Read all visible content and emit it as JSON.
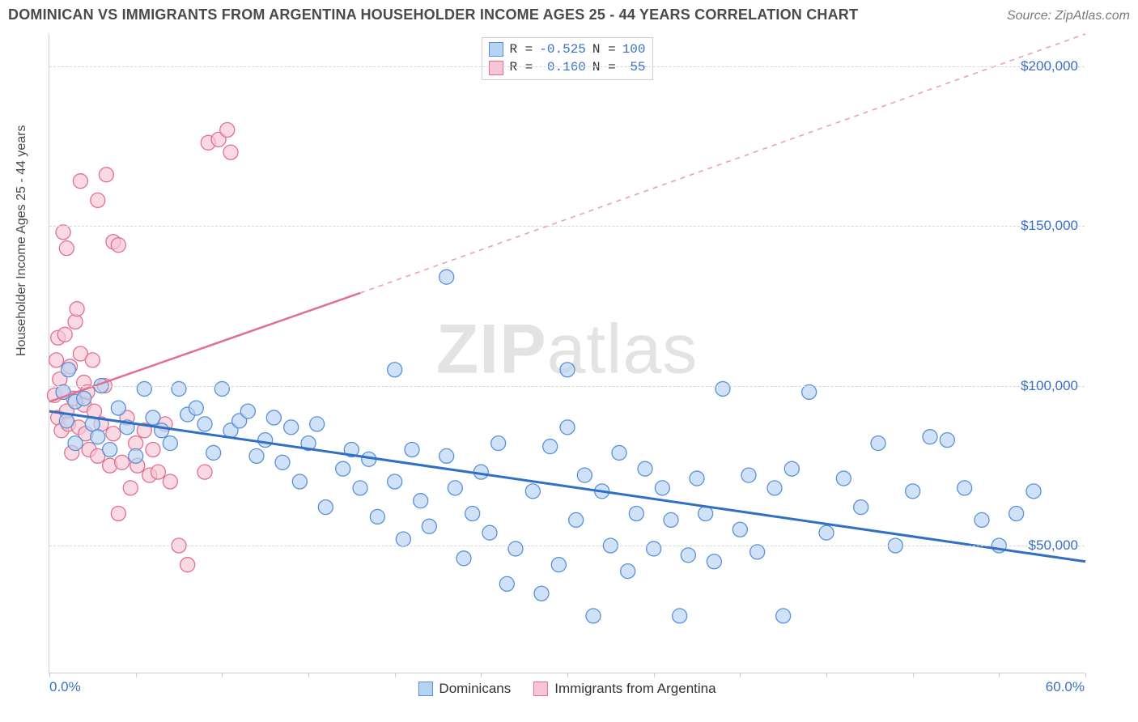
{
  "title": "DOMINICAN VS IMMIGRANTS FROM ARGENTINA HOUSEHOLDER INCOME AGES 25 - 44 YEARS CORRELATION CHART",
  "source_label": "Source: ZipAtlas.com",
  "watermark": {
    "bold": "ZIP",
    "rest": "atlas"
  },
  "ylabel": "Householder Income Ages 25 - 44 years",
  "chart": {
    "type": "scatter",
    "xlim": [
      0.0,
      60.0
    ],
    "ylim": [
      10000,
      210000
    ],
    "x_unit": "%",
    "yticks": [
      50000,
      100000,
      150000,
      200000
    ],
    "ytick_labels": [
      "$50,000",
      "$100,000",
      "$150,000",
      "$200,000"
    ],
    "x_axis_min_label": "0.0%",
    "x_axis_max_label": "60.0%",
    "xtick_positions": [
      0,
      5,
      10,
      15,
      20,
      25,
      30,
      35,
      40,
      45,
      50,
      55,
      60
    ],
    "grid_color": "#d8d8d8",
    "background_color": "#ffffff",
    "axis_color": "#cfcfcf",
    "label_color_primary": "#3970c6",
    "series": [
      {
        "name": "Dominicans",
        "fill": "#b7d3f2",
        "stroke": "#5a91d6",
        "marker_radius": 9,
        "marker_opacity": 0.65,
        "r_value": "-0.525",
        "n_value": "100",
        "trend": {
          "x1": 0.0,
          "y1": 92000,
          "x2": 60.0,
          "y2": 45000,
          "dash": "none"
        },
        "points": [
          [
            0.8,
            98000
          ],
          [
            1.0,
            89000
          ],
          [
            1.1,
            105000
          ],
          [
            1.5,
            95000
          ],
          [
            1.5,
            82000
          ],
          [
            2.0,
            96000
          ],
          [
            2.5,
            88000
          ],
          [
            2.8,
            84000
          ],
          [
            3.0,
            100000
          ],
          [
            3.5,
            80000
          ],
          [
            4.0,
            93000
          ],
          [
            4.5,
            87000
          ],
          [
            5.0,
            78000
          ],
          [
            5.5,
            99000
          ],
          [
            6.0,
            90000
          ],
          [
            6.5,
            86000
          ],
          [
            7.0,
            82000
          ],
          [
            7.5,
            99000
          ],
          [
            8.0,
            91000
          ],
          [
            8.5,
            93000
          ],
          [
            9.0,
            88000
          ],
          [
            9.5,
            79000
          ],
          [
            10.0,
            99000
          ],
          [
            10.5,
            86000
          ],
          [
            11.0,
            89000
          ],
          [
            11.5,
            92000
          ],
          [
            12.0,
            78000
          ],
          [
            12.5,
            83000
          ],
          [
            13.0,
            90000
          ],
          [
            13.5,
            76000
          ],
          [
            14.0,
            87000
          ],
          [
            14.5,
            70000
          ],
          [
            15.0,
            82000
          ],
          [
            15.5,
            88000
          ],
          [
            16.0,
            62000
          ],
          [
            17.0,
            74000
          ],
          [
            17.5,
            80000
          ],
          [
            18.0,
            68000
          ],
          [
            18.5,
            77000
          ],
          [
            19.0,
            59000
          ],
          [
            20.0,
            105000
          ],
          [
            20.0,
            70000
          ],
          [
            20.5,
            52000
          ],
          [
            21.0,
            80000
          ],
          [
            21.5,
            64000
          ],
          [
            22.0,
            56000
          ],
          [
            23.0,
            134000
          ],
          [
            23.0,
            78000
          ],
          [
            23.5,
            68000
          ],
          [
            24.0,
            46000
          ],
          [
            24.5,
            60000
          ],
          [
            25.0,
            73000
          ],
          [
            25.5,
            54000
          ],
          [
            26.0,
            82000
          ],
          [
            26.5,
            38000
          ],
          [
            27.0,
            49000
          ],
          [
            28.0,
            67000
          ],
          [
            28.5,
            35000
          ],
          [
            29.0,
            81000
          ],
          [
            29.5,
            44000
          ],
          [
            30.0,
            87000
          ],
          [
            30.0,
            105000
          ],
          [
            30.5,
            58000
          ],
          [
            31.0,
            72000
          ],
          [
            31.5,
            28000
          ],
          [
            32.0,
            67000
          ],
          [
            32.5,
            50000
          ],
          [
            33.0,
            79000
          ],
          [
            33.5,
            42000
          ],
          [
            34.0,
            60000
          ],
          [
            34.5,
            74000
          ],
          [
            35.0,
            49000
          ],
          [
            35.5,
            68000
          ],
          [
            36.0,
            58000
          ],
          [
            36.5,
            28000
          ],
          [
            37.0,
            47000
          ],
          [
            37.5,
            71000
          ],
          [
            38.0,
            60000
          ],
          [
            38.5,
            45000
          ],
          [
            39.0,
            99000
          ],
          [
            40.0,
            55000
          ],
          [
            40.5,
            72000
          ],
          [
            41.0,
            48000
          ],
          [
            42.0,
            68000
          ],
          [
            42.5,
            28000
          ],
          [
            43.0,
            74000
          ],
          [
            44.0,
            98000
          ],
          [
            45.0,
            54000
          ],
          [
            46.0,
            71000
          ],
          [
            47.0,
            62000
          ],
          [
            48.0,
            82000
          ],
          [
            49.0,
            50000
          ],
          [
            50.0,
            67000
          ],
          [
            51.0,
            84000
          ],
          [
            52.0,
            83000
          ],
          [
            53.0,
            68000
          ],
          [
            54.0,
            58000
          ],
          [
            55.0,
            50000
          ],
          [
            56.0,
            60000
          ],
          [
            57.0,
            67000
          ]
        ]
      },
      {
        "name": "Immigrants from Argentina",
        "fill": "#f6c6d4",
        "stroke": "#e26f93",
        "marker_radius": 9,
        "marker_opacity": 0.65,
        "r_value": "0.160",
        "n_value": "55",
        "trend_solid": {
          "x1": 0.0,
          "y1": 95000,
          "x2": 18.0,
          "y2": 129000
        },
        "trend_dashed": {
          "x1": 18.0,
          "y1": 129000,
          "x2": 60.0,
          "y2": 210000
        },
        "points": [
          [
            0.3,
            97000
          ],
          [
            0.4,
            108000
          ],
          [
            0.5,
            90000
          ],
          [
            0.5,
            115000
          ],
          [
            0.6,
            102000
          ],
          [
            0.7,
            86000
          ],
          [
            0.8,
            98000
          ],
          [
            0.8,
            148000
          ],
          [
            0.9,
            116000
          ],
          [
            1.0,
            92000
          ],
          [
            1.0,
            143000
          ],
          [
            1.1,
            88000
          ],
          [
            1.2,
            106000
          ],
          [
            1.3,
            79000
          ],
          [
            1.4,
            96000
          ],
          [
            1.5,
            120000
          ],
          [
            1.6,
            124000
          ],
          [
            1.7,
            87000
          ],
          [
            1.8,
            110000
          ],
          [
            1.8,
            164000
          ],
          [
            2.0,
            94000
          ],
          [
            2.0,
            101000
          ],
          [
            2.1,
            85000
          ],
          [
            2.2,
            98000
          ],
          [
            2.3,
            80000
          ],
          [
            2.5,
            108000
          ],
          [
            2.6,
            92000
          ],
          [
            2.8,
            158000
          ],
          [
            2.8,
            78000
          ],
          [
            3.0,
            88000
          ],
          [
            3.2,
            100000
          ],
          [
            3.3,
            166000
          ],
          [
            3.5,
            75000
          ],
          [
            3.7,
            145000
          ],
          [
            3.7,
            85000
          ],
          [
            4.0,
            60000
          ],
          [
            4.0,
            144000
          ],
          [
            4.2,
            76000
          ],
          [
            4.5,
            90000
          ],
          [
            4.7,
            68000
          ],
          [
            5.0,
            82000
          ],
          [
            5.1,
            75000
          ],
          [
            5.5,
            86000
          ],
          [
            5.8,
            72000
          ],
          [
            6.0,
            80000
          ],
          [
            6.3,
            73000
          ],
          [
            6.7,
            88000
          ],
          [
            7.0,
            70000
          ],
          [
            7.5,
            50000
          ],
          [
            8.0,
            44000
          ],
          [
            9.0,
            73000
          ],
          [
            9.2,
            176000
          ],
          [
            9.8,
            177000
          ],
          [
            10.3,
            180000
          ],
          [
            10.5,
            173000
          ]
        ]
      }
    ]
  },
  "stats_legend_labels": {
    "r_label": "R = ",
    "n_label": " N = "
  },
  "bottom_legend": [
    "Dominicans",
    "Immigrants from Argentina"
  ]
}
